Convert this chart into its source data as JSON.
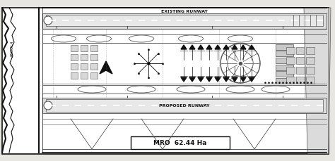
{
  "bg_color": "#e8e6e0",
  "white": "#ffffff",
  "line_color": "#888888",
  "dark_color": "#111111",
  "mid_color": "#555555",
  "label_mro": "MRO  62.44 Ha",
  "title_runway_top": "EXISTING RUNWAY",
  "title_runway_bottom": "PROPOSED RUNWAY",
  "fig_width": 4.74,
  "fig_height": 2.3,
  "dpi": 100,
  "angola_label": "ANGOLA"
}
